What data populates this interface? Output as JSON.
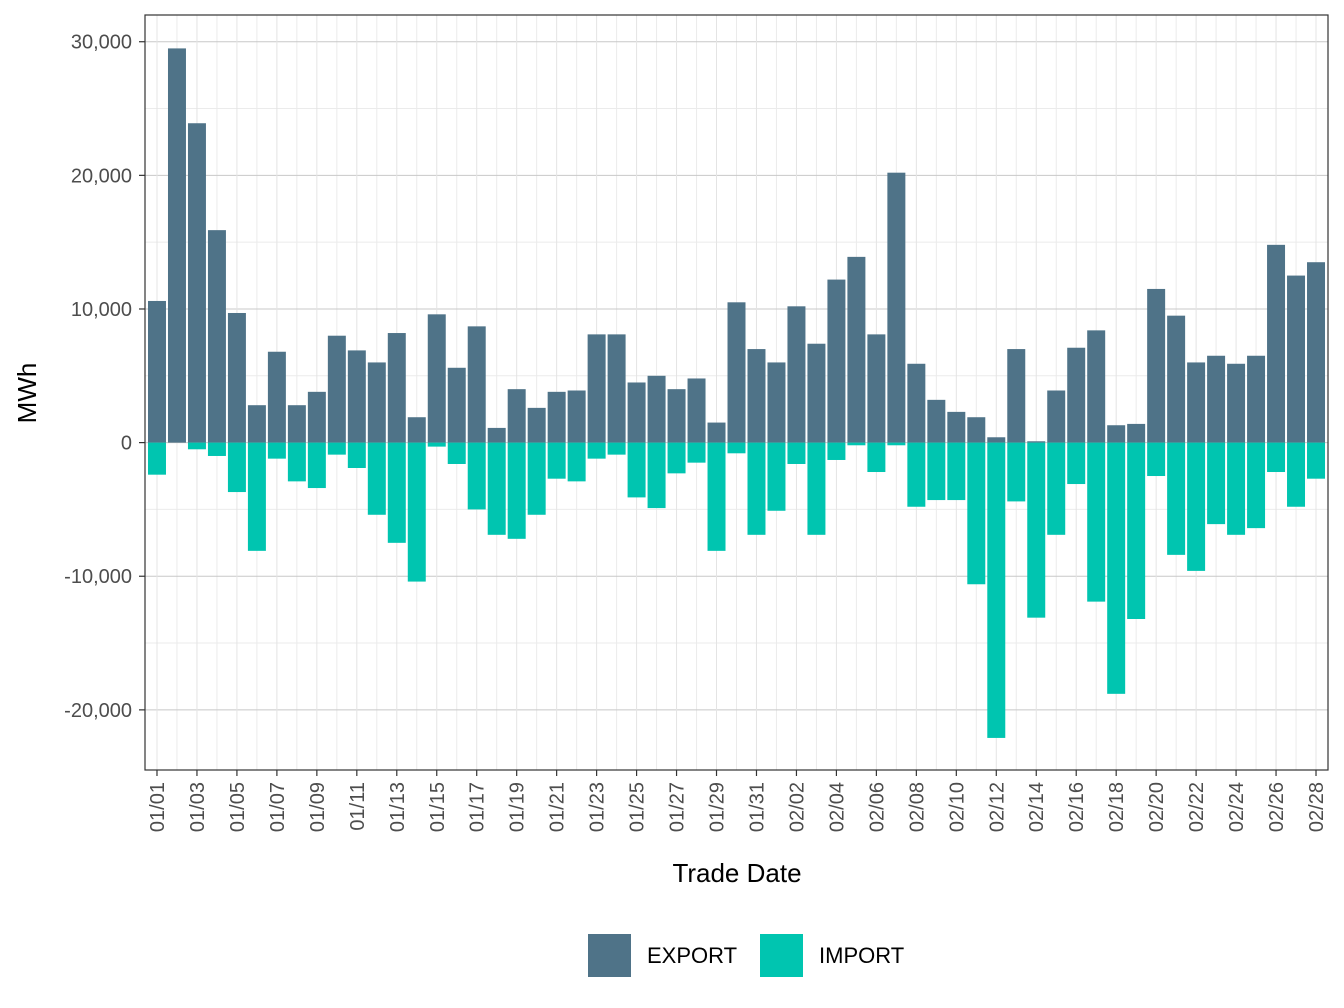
{
  "chart_data": {
    "type": "bar",
    "stacked": "diverging",
    "xlabel": "Trade Date",
    "ylabel": "MWh",
    "ylim": [
      -24500,
      32000
    ],
    "yticks": [
      -20000,
      -10000,
      0,
      10000,
      20000,
      30000
    ],
    "ytick_labels": [
      "-20,000",
      "-10,000",
      "0",
      "10,000",
      "20,000",
      "30,000"
    ],
    "grid": true,
    "legend_position": "bottom",
    "categories": [
      "01/01",
      "01/02",
      "01/03",
      "01/04",
      "01/05",
      "01/06",
      "01/07",
      "01/08",
      "01/09",
      "01/10",
      "01/11",
      "01/12",
      "01/13",
      "01/14",
      "01/15",
      "01/16",
      "01/17",
      "01/18",
      "01/19",
      "01/20",
      "01/21",
      "01/22",
      "01/23",
      "01/24",
      "01/25",
      "01/26",
      "01/27",
      "01/28",
      "01/29",
      "01/30",
      "01/31",
      "02/01",
      "02/02",
      "02/03",
      "02/04",
      "02/05",
      "02/06",
      "02/07",
      "02/08",
      "02/09",
      "02/10",
      "02/11",
      "02/12",
      "02/13",
      "02/14",
      "02/15",
      "02/16",
      "02/17",
      "02/18",
      "02/19",
      "02/20",
      "02/21",
      "02/22",
      "02/23",
      "02/24",
      "02/25",
      "02/26",
      "02/27",
      "02/28"
    ],
    "xtick_labels": [
      "01/01",
      "01/03",
      "01/05",
      "01/07",
      "01/09",
      "01/11",
      "01/13",
      "01/15",
      "01/17",
      "01/19",
      "01/21",
      "01/23",
      "01/25",
      "01/27",
      "01/29",
      "01/31",
      "02/02",
      "02/04",
      "02/06",
      "02/08",
      "02/10",
      "02/12",
      "02/14",
      "02/16",
      "02/18",
      "02/20",
      "02/22",
      "02/24",
      "02/26",
      "02/28"
    ],
    "series": [
      {
        "name": "EXPORT",
        "color": "#4f7388",
        "values": [
          10600,
          29500,
          23900,
          15900,
          9700,
          2800,
          6800,
          2800,
          3800,
          8000,
          6900,
          6000,
          8200,
          1900,
          9600,
          5600,
          8700,
          1100,
          4000,
          2600,
          3800,
          3900,
          8100,
          8100,
          4500,
          5000,
          4000,
          4800,
          1500,
          10500,
          7000,
          6000,
          10200,
          7400,
          12200,
          13900,
          8100,
          20200,
          5900,
          3200,
          2300,
          1900,
          400,
          7000,
          100,
          3900,
          7100,
          8400,
          1300,
          1400,
          11500,
          9500,
          6000,
          6500,
          5900,
          6500,
          14800,
          12500,
          13500
        ]
      },
      {
        "name": "IMPORT",
        "color": "#00c5b0",
        "values": [
          -2400,
          0,
          -500,
          -1000,
          -3700,
          -8100,
          -1200,
          -2900,
          -3400,
          -900,
          -1900,
          -5400,
          -7500,
          -10400,
          -300,
          -1600,
          -5000,
          -6900,
          -7200,
          -5400,
          -2700,
          -2900,
          -1200,
          -900,
          -4100,
          -4900,
          -2300,
          -1500,
          -8100,
          -800,
          -6900,
          -5100,
          -1600,
          -6900,
          -1300,
          -200,
          -2200,
          -200,
          -4800,
          -4300,
          -4300,
          -10600,
          -22100,
          -4400,
          -13100,
          -6900,
          -3100,
          -11900,
          -18800,
          -13200,
          -2500,
          -8400,
          -9600,
          -6100,
          -6900,
          -6400,
          -2200,
          -4800,
          -2700
        ]
      }
    ]
  }
}
